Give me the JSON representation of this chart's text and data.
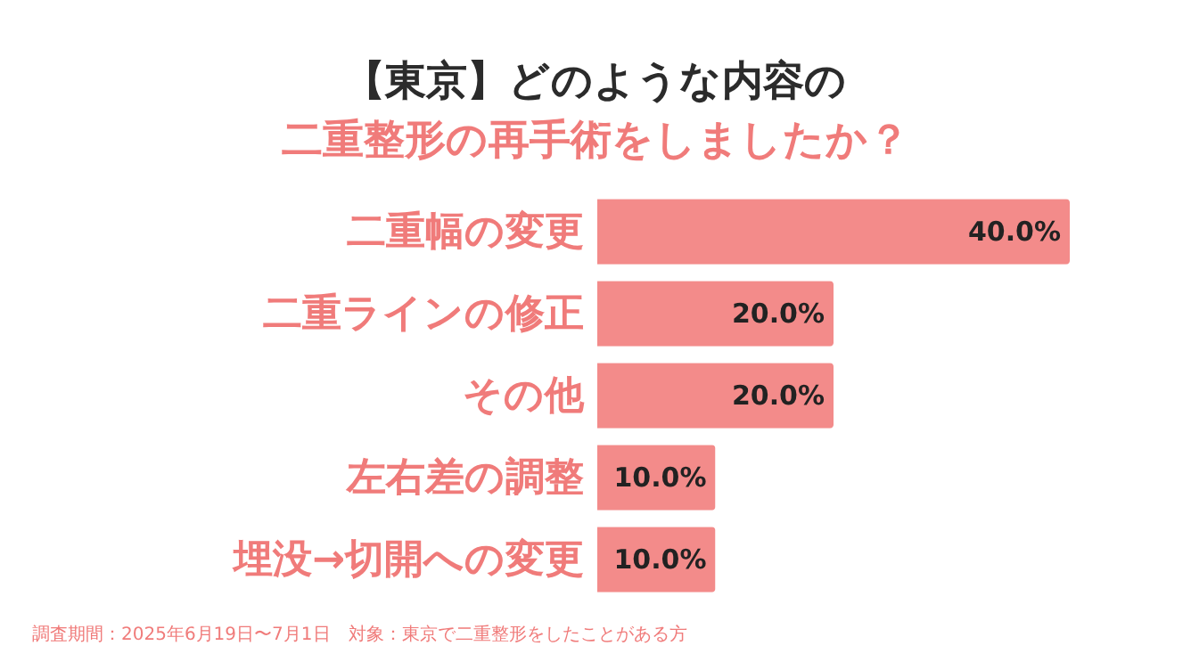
{
  "chart_data": {
    "type": "bar",
    "orientation": "horizontal",
    "title": "【東京】どのような内容の",
    "subtitle": "二重整形の再手術をしましたか？",
    "categories": [
      "二重幅の変更",
      "二重ラインの修正",
      "その他",
      "左右差の調整",
      "埋没→切開への変更"
    ],
    "values": [
      40.0,
      20.0,
      20.0,
      10.0,
      10.0
    ],
    "color": "#f38b8a",
    "value_labels": [
      "40.0%",
      "20.0%",
      "20.0%",
      "10.0%",
      "10.0%"
    ],
    "annotations": [
      "調査期間：2025年6月19日〜7月1日　対象：東京で二重整形をしたことがある方"
    ],
    "grid": false,
    "tick_labels": "y"
  }
}
